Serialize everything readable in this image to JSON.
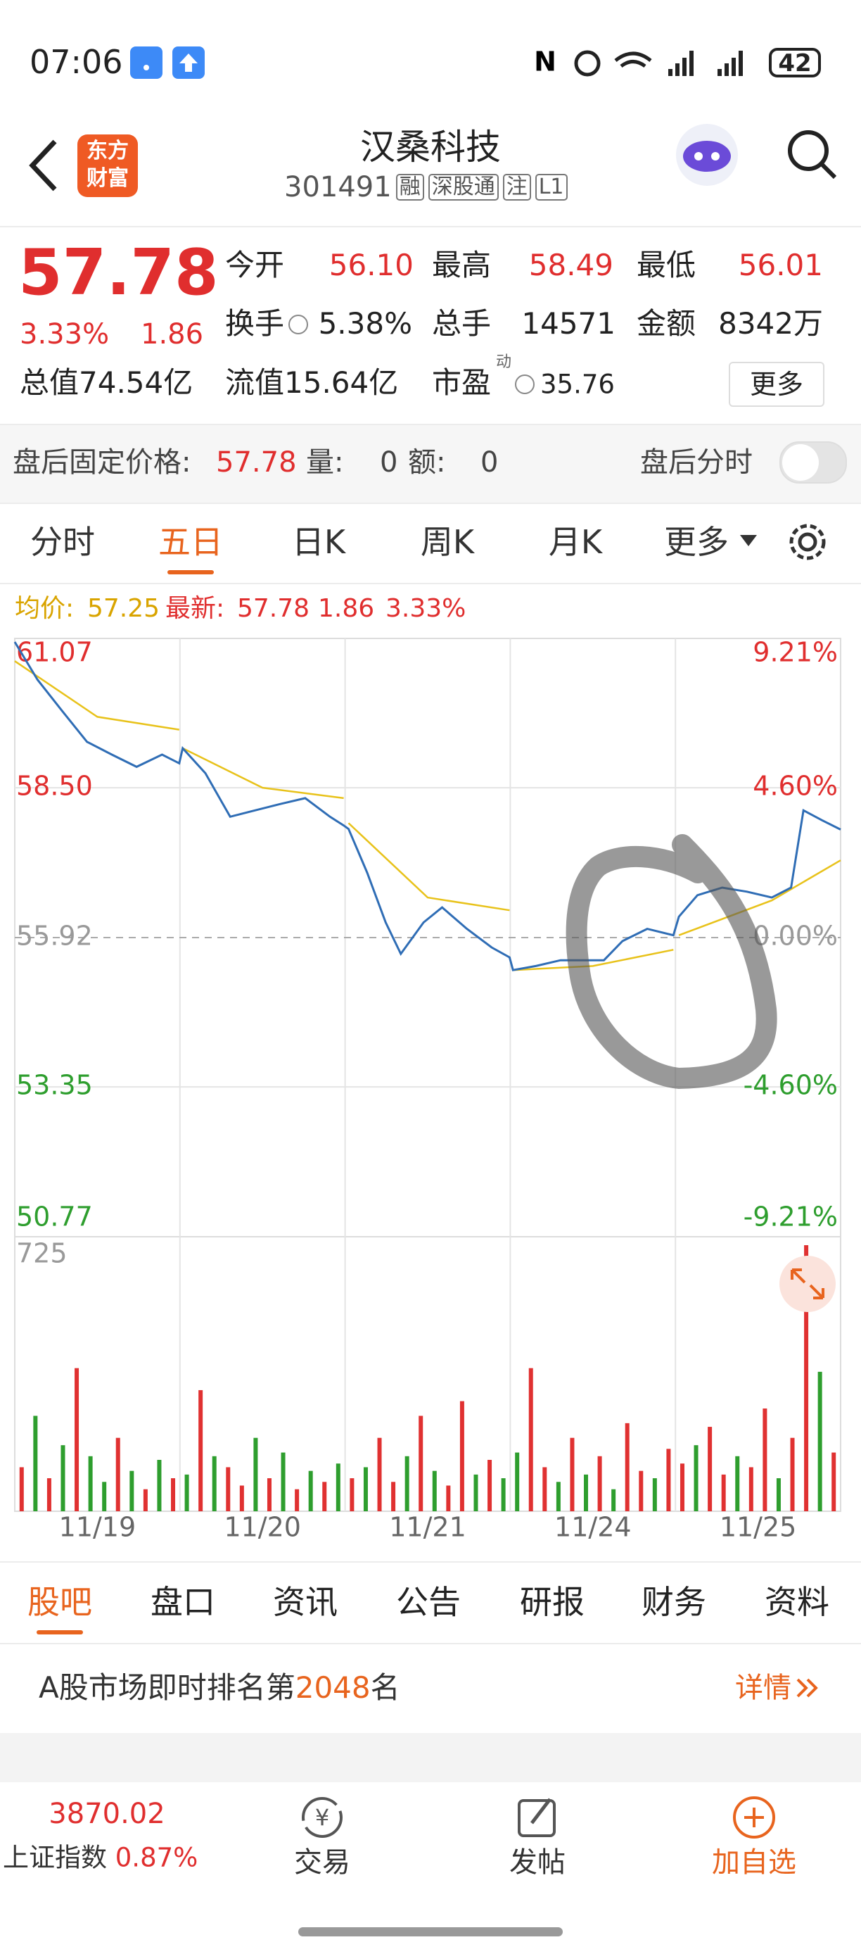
{
  "status": {
    "time": "07:06",
    "battery": "42"
  },
  "header": {
    "logo": [
      "东方",
      "财富"
    ],
    "title": "汉桑科技",
    "code": "301491",
    "tags": [
      "融",
      "深股通",
      "注",
      "L1"
    ]
  },
  "quote": {
    "price": "57.78",
    "change_pct": "3.33%",
    "change": "1.86",
    "fields": [
      {
        "label": "今开",
        "value": "56.10"
      },
      {
        "label": "最高",
        "value": "58.49"
      },
      {
        "label": "最低",
        "value": "56.01"
      },
      {
        "label": "换手",
        "value": "5.38%"
      },
      {
        "label": "总手",
        "value": "14571"
      },
      {
        "label": "金额",
        "value": "8342万"
      },
      {
        "label": "总值",
        "value": "74.54亿"
      },
      {
        "label": "流值",
        "value": "15.64亿"
      },
      {
        "label": "市盈",
        "sup": "动",
        "value": "35.76"
      }
    ],
    "more": "更多"
  },
  "after_hours": {
    "label": "盘后固定价格:",
    "price": "57.78",
    "vol_label": "量:",
    "vol": "0",
    "amt_label": "额:",
    "amt": "0",
    "toggle_label": "盘后分时"
  },
  "tabs": {
    "items": [
      "分时",
      "五日",
      "日K",
      "周K",
      "月K",
      "更多"
    ]
  },
  "chart_data": {
    "type": "line",
    "legend": {
      "avg": "57.25",
      "latest": "57.78",
      "change": "1.86",
      "pct": "3.33%"
    },
    "categories": [
      "11/19",
      "11/20",
      "11/21",
      "11/24",
      "11/25"
    ],
    "xlim": [
      0,
      1200
    ],
    "ylim": [
      50.77,
      61.07
    ],
    "yticks": [
      61.07,
      {
        "value": 58.5,
        "label": "58.50"
      },
      55.92,
      53.35,
      50.77
    ],
    "y2lim": [
      -9.21,
      9.21
    ],
    "y2ticks": [
      {
        "value": 9.21,
        "label": "9.21%"
      },
      {
        "value": 4.6,
        "label": "4.60%"
      },
      {
        "value": 0,
        "label": "0.00%"
      },
      {
        "value": -4.6,
        "label": "-4.60%"
      },
      {
        "value": -9.21,
        "label": "-9.21%"
      }
    ],
    "grid": true,
    "series": [
      {
        "name": "最新:",
        "color": "#2f6db5",
        "x": [
          0,
          33,
          69,
          105,
          141,
          177,
          214,
          239,
          244,
          277,
          313,
          349,
          386,
          422,
          458,
          478,
          485,
          512,
          539,
          561,
          594,
          621,
          657,
          693,
          719,
          724,
          757,
          793,
          829,
          856,
          883,
          919,
          957,
          965,
          992,
          1028,
          1064,
          1100,
          1128,
          1146,
          1173,
          1200
        ],
        "values": [
          61.01,
          60.36,
          59.82,
          59.29,
          59.07,
          58.86,
          59.07,
          58.92,
          59.18,
          58.75,
          58.0,
          58.11,
          58.22,
          58.32,
          58.0,
          57.85,
          57.79,
          57.04,
          56.18,
          55.64,
          56.18,
          56.44,
          56.07,
          55.75,
          55.58,
          55.36,
          55.43,
          55.53,
          55.53,
          55.53,
          55.86,
          56.07,
          55.96,
          56.28,
          56.65,
          56.78,
          56.71,
          56.61,
          56.78,
          58.11,
          57.94,
          57.78
        ]
      },
      {
        "name": "均价:",
        "color": "#e8c21a",
        "x": [
          0,
          120,
          239,
          null,
          244,
          360,
          478,
          null,
          485,
          600,
          719,
          null,
          724,
          840,
          957,
          null,
          965,
          1100,
          1200
        ],
        "values": [
          60.68,
          59.72,
          59.5,
          null,
          59.18,
          58.5,
          58.32,
          null,
          57.89,
          56.61,
          56.39,
          null,
          55.36,
          55.43,
          55.71,
          null,
          55.96,
          56.56,
          57.25
        ]
      }
    ],
    "volume": {
      "ylim": [
        0,
        725
      ],
      "yticks": [
        725
      ],
      "up_color": "#e03131",
      "down_color": "#2e9e2e",
      "values": [
        120,
        260,
        90,
        180,
        390,
        150,
        80,
        200,
        110,
        60,
        140,
        90,
        100,
        330,
        150,
        120,
        70,
        200,
        90,
        160,
        60,
        110,
        80,
        130,
        90,
        120,
        200,
        80,
        150,
        260,
        110,
        70,
        300,
        100,
        140,
        90,
        160,
        390,
        120,
        80,
        200,
        100,
        150,
        60,
        240,
        110,
        90,
        170,
        130,
        180,
        230,
        100,
        150,
        120,
        280,
        90,
        200,
        725,
        380,
        160
      ],
      "up": [
        true,
        false,
        true,
        false,
        true,
        false,
        false,
        true,
        false,
        true,
        false,
        true,
        false,
        true,
        false,
        true,
        true,
        false,
        true,
        false,
        true,
        false,
        true,
        false,
        true,
        false,
        true,
        true,
        false,
        true,
        false,
        true,
        true,
        false,
        true,
        false,
        false,
        true,
        true,
        false,
        true,
        false,
        true,
        false,
        true,
        true,
        false,
        true,
        true,
        false,
        true,
        true,
        false,
        true,
        true,
        false,
        true,
        true,
        false,
        true
      ]
    }
  },
  "bottom_tabs": {
    "items": [
      "股吧",
      "盘口",
      "资讯",
      "公告",
      "研报",
      "财务",
      "资料"
    ]
  },
  "rank": {
    "prefix": "A股市场即时排名第",
    "number": "2048",
    "suffix": "名",
    "link": "详情"
  },
  "nav": {
    "index_value": "3870.02",
    "index_name": "上证指数",
    "index_change": "0.87%",
    "items": [
      "交易",
      "发帖",
      "加自选"
    ]
  }
}
